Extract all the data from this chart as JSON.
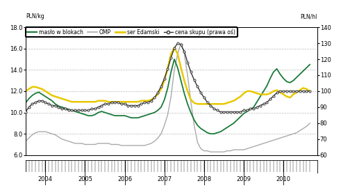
{
  "title_left": "PLN/kg",
  "title_right": "PLN/hl",
  "ylim_left": [
    6.0,
    18.0
  ],
  "ylim_right": [
    60,
    140
  ],
  "yticks_left": [
    6.0,
    8.0,
    10.0,
    12.0,
    14.0,
    16.0,
    18.0
  ],
  "yticks_right": [
    60,
    70,
    80,
    90,
    100,
    110,
    120,
    130,
    140
  ],
  "year_labels": [
    "2004",
    "2005",
    "2006",
    "2007",
    "2008",
    "2009",
    "2010"
  ],
  "year_positions": [
    2004,
    2005,
    2006,
    2007,
    2008,
    2009,
    2010
  ],
  "legend": [
    "masło w blokach",
    "OMP",
    "ser Edamski",
    "cena skupu (prawa oś)"
  ],
  "colors": {
    "maslo": "#1a7a3a",
    "OMP": "#aaaaaa",
    "ser": "#e8c800",
    "cena": "#333333"
  },
  "background_color": "#ffffff",
  "grid_color": "#bbbbbb",
  "start_year": 2003.25,
  "n_months": 90,
  "maslo": [
    9.7,
    9.9,
    10.4,
    10.9,
    11.3,
    11.6,
    11.8,
    11.9,
    11.7,
    11.5,
    11.3,
    11.1,
    10.8,
    10.6,
    10.5,
    10.4,
    10.3,
    10.2,
    10.1,
    10.0,
    9.9,
    9.8,
    9.7,
    9.7,
    9.8,
    10.0,
    10.1,
    10.0,
    9.9,
    9.8,
    9.7,
    9.7,
    9.7,
    9.7,
    9.6,
    9.5,
    9.5,
    9.5,
    9.6,
    9.7,
    9.8,
    9.9,
    10.0,
    10.2,
    10.5,
    11.2,
    12.3,
    13.8,
    15.0,
    14.2,
    13.0,
    11.8,
    10.8,
    10.0,
    9.3,
    8.8,
    8.5,
    8.3,
    8.1,
    8.0,
    8.0,
    8.1,
    8.2,
    8.4,
    8.6,
    8.8,
    9.0,
    9.3,
    9.6,
    9.9,
    10.1,
    10.3,
    10.5,
    11.0,
    11.5,
    12.0,
    12.5,
    13.2,
    13.8,
    14.1,
    13.6,
    13.2,
    12.9,
    12.8,
    13.0,
    13.3,
    13.6,
    13.9,
    14.2,
    14.5
  ],
  "OMP": [
    6.5,
    6.7,
    7.0,
    7.3,
    7.6,
    7.9,
    8.1,
    8.2,
    8.2,
    8.2,
    8.1,
    8.0,
    7.9,
    7.7,
    7.5,
    7.4,
    7.3,
    7.2,
    7.1,
    7.1,
    7.1,
    7.0,
    7.0,
    7.0,
    7.0,
    7.1,
    7.1,
    7.1,
    7.1,
    7.0,
    7.0,
    7.0,
    6.9,
    6.9,
    6.9,
    6.9,
    6.9,
    6.9,
    6.9,
    6.9,
    7.0,
    7.1,
    7.3,
    7.6,
    8.0,
    8.8,
    9.8,
    11.5,
    14.0,
    15.5,
    16.5,
    15.5,
    13.5,
    11.0,
    8.8,
    7.2,
    6.6,
    6.4,
    6.4,
    6.3,
    6.3,
    6.3,
    6.3,
    6.3,
    6.4,
    6.4,
    6.5,
    6.5,
    6.5,
    6.5,
    6.6,
    6.7,
    6.8,
    6.9,
    7.0,
    7.1,
    7.2,
    7.3,
    7.4,
    7.5,
    7.6,
    7.7,
    7.8,
    7.9,
    8.0,
    8.1,
    8.3,
    8.5,
    8.7,
    9.0
  ],
  "ser": [
    11.5,
    11.6,
    11.8,
    12.0,
    12.2,
    12.4,
    12.4,
    12.3,
    12.2,
    12.0,
    11.8,
    11.6,
    11.5,
    11.4,
    11.3,
    11.2,
    11.1,
    11.0,
    11.0,
    11.0,
    11.0,
    11.0,
    11.0,
    11.0,
    11.0,
    11.1,
    11.1,
    11.1,
    11.0,
    11.0,
    11.0,
    11.0,
    11.0,
    11.0,
    11.0,
    11.0,
    11.0,
    11.0,
    11.1,
    11.1,
    11.1,
    11.2,
    11.4,
    11.7,
    12.2,
    13.0,
    14.2,
    15.5,
    16.1,
    15.5,
    14.2,
    13.0,
    12.0,
    11.2,
    10.9,
    10.8,
    10.8,
    10.8,
    10.8,
    10.8,
    10.8,
    10.8,
    10.8,
    10.8,
    10.9,
    11.0,
    11.1,
    11.3,
    11.5,
    11.8,
    12.0,
    12.0,
    11.9,
    11.8,
    11.7,
    11.7,
    11.7,
    11.8,
    12.0,
    12.1,
    11.9,
    11.7,
    11.5,
    11.4,
    11.7,
    11.9,
    12.1,
    12.3,
    12.2,
    12.0
  ],
  "cena": [
    82,
    83,
    85,
    87,
    90,
    92,
    93,
    94,
    94,
    93,
    92,
    91,
    91,
    90,
    89,
    89,
    88,
    88,
    88,
    88,
    88,
    88,
    88,
    89,
    89,
    90,
    91,
    92,
    92,
    93,
    93,
    93,
    92,
    92,
    91,
    91,
    91,
    91,
    92,
    93,
    93,
    94,
    96,
    99,
    103,
    108,
    114,
    121,
    127,
    130,
    129,
    125,
    118,
    112,
    107,
    103,
    99,
    96,
    93,
    91,
    89,
    88,
    87,
    87,
    87,
    87,
    87,
    87,
    87,
    88,
    88,
    89,
    89,
    90,
    91,
    92,
    93,
    95,
    97,
    99,
    100,
    100,
    100,
    100,
    100,
    100,
    100,
    100,
    100,
    100
  ]
}
